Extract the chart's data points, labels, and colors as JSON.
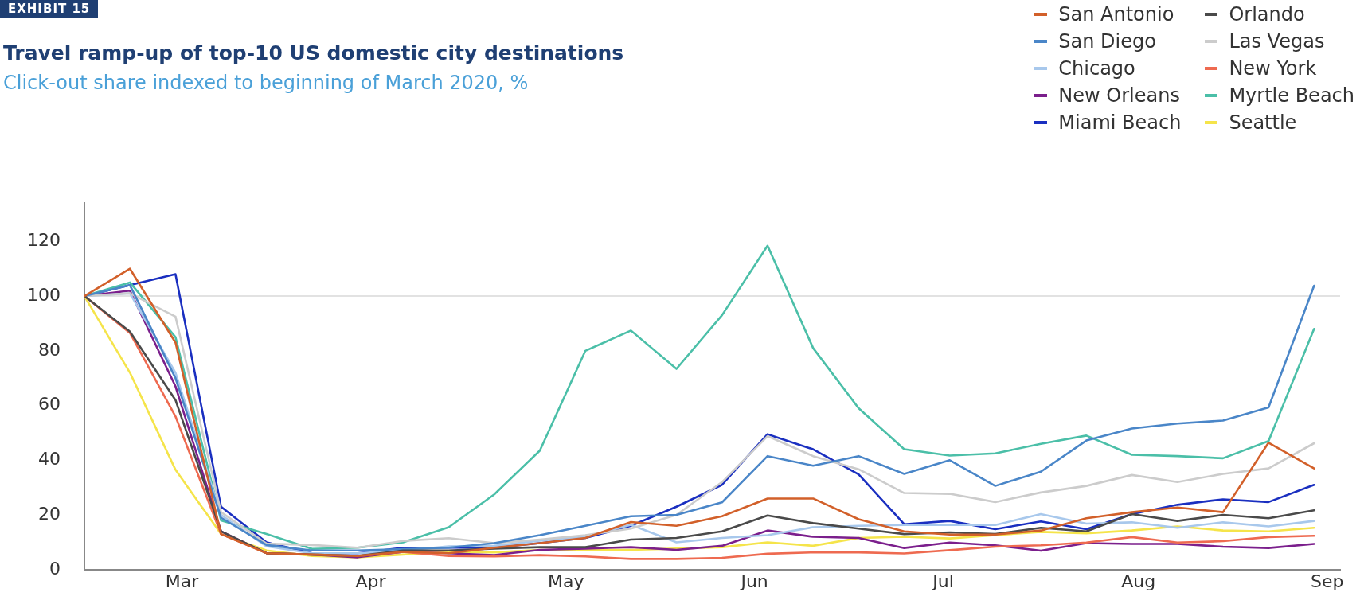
{
  "chart_data": {
    "type": "line",
    "title": "Travel ramp-up of top-10 US domestic city destinations",
    "subtitle": "Click-out share indexed to beginning of March 2020, %",
    "annotations": [
      "EXHIBIT 15"
    ],
    "x": [
      "2020-03-01",
      "2020-03-08",
      "2020-03-15",
      "2020-03-22",
      "2020-03-29",
      "2020-04-05",
      "2020-04-12",
      "2020-04-19",
      "2020-04-26",
      "2020-05-03",
      "2020-05-10",
      "2020-05-17",
      "2020-05-24",
      "2020-05-31",
      "2020-06-07",
      "2020-06-14",
      "2020-06-21",
      "2020-06-28",
      "2020-07-05",
      "2020-07-12",
      "2020-07-19",
      "2020-07-26",
      "2020-08-02",
      "2020-08-09",
      "2020-08-16",
      "2020-08-23",
      "2020-08-30",
      "2020-09-06"
    ],
    "xlim": [
      "2020-03-01",
      "2020-09-10"
    ],
    "xticks": [
      {
        "value": "2020-03-16",
        "label": "Mar"
      },
      {
        "value": "2020-04-14",
        "label": "Apr"
      },
      {
        "value": "2020-05-14",
        "label": "May"
      },
      {
        "value": "2020-06-12",
        "label": "Jun"
      },
      {
        "value": "2020-07-11",
        "label": "Jul"
      },
      {
        "value": "2020-08-10",
        "label": "Aug"
      },
      {
        "value": "2020-09-08",
        "label": "Sep"
      }
    ],
    "ylim": [
      0,
      134
    ],
    "yticks": [
      0,
      20,
      40,
      60,
      80,
      100,
      120
    ],
    "ref_lines": [
      {
        "axis": "y",
        "value": 100,
        "color": "#d9d9d9"
      }
    ],
    "legend": "top right",
    "marker": "none",
    "line_style": "solid",
    "series": [
      {
        "name": "San Antonio",
        "color": "#d2602a",
        "values": [
          100,
          110,
          83,
          13,
          6,
          5.5,
          5,
          6.5,
          6,
          8,
          9.7,
          11.6,
          17.4,
          16,
          19.5,
          26,
          26,
          18.4,
          14,
          12.8,
          12.8,
          14.3,
          18.8,
          21,
          22.7,
          21,
          46.4,
          37
        ]
      },
      {
        "name": "Orlando",
        "color": "#4a4a4a",
        "values": [
          100,
          87,
          62,
          14,
          6,
          5.5,
          5,
          7,
          7,
          7.7,
          8.2,
          8.2,
          11,
          11.6,
          14,
          19.8,
          17,
          15,
          13,
          13.6,
          13,
          15.3,
          14,
          20.3,
          17.8,
          20,
          18.8,
          21.7
        ]
      },
      {
        "name": "San Diego",
        "color": "#4a86c8",
        "values": [
          100,
          104,
          70,
          19,
          9,
          7,
          7,
          7.5,
          8,
          9.7,
          12.6,
          16,
          19.5,
          20,
          24.6,
          41.5,
          38,
          41.5,
          35,
          40,
          30.6,
          35.8,
          47.2,
          51.6,
          53.4,
          54.5,
          59.3,
          103.8
        ]
      },
      {
        "name": "Las Vegas",
        "color": "#cccccc",
        "values": [
          100,
          101,
          92.5,
          21,
          9.5,
          9,
          8,
          10.5,
          11.5,
          9.7,
          11,
          12.6,
          15,
          20,
          32,
          48.8,
          41.5,
          36.7,
          28,
          27.7,
          24.7,
          28.2,
          30.6,
          34.6,
          32,
          35,
          37,
          46.2
        ]
      },
      {
        "name": "Chicago",
        "color": "#a8c8ec",
        "values": [
          100,
          101,
          72,
          20,
          8.5,
          6,
          6,
          7,
          8.5,
          8.7,
          10.6,
          12,
          16.4,
          10,
          11.6,
          12.6,
          15.5,
          16,
          16.3,
          16.3,
          16.3,
          20.3,
          16.8,
          17.3,
          15.3,
          17.3,
          15.8,
          17.8
        ]
      },
      {
        "name": "New York",
        "color": "#ee6a50",
        "values": [
          100,
          86.5,
          56,
          13,
          6,
          5.5,
          5,
          6.5,
          5,
          4.8,
          5.3,
          4.8,
          3.9,
          3.9,
          4.3,
          5.8,
          6.3,
          6.3,
          5.9,
          7.1,
          8.4,
          8.9,
          9.9,
          11.9,
          9.9,
          10.4,
          11.9,
          12.4
        ]
      },
      {
        "name": "New Orleans",
        "color": "#7b1f8c",
        "values": [
          100,
          102,
          67,
          14,
          6,
          5.5,
          4.5,
          6.5,
          6,
          5.3,
          7.2,
          7.7,
          8.2,
          7.2,
          8.7,
          14.3,
          12,
          11.6,
          7.9,
          9.9,
          8.9,
          6.9,
          9.7,
          9.4,
          9.4,
          8.4,
          7.9,
          9.4
        ]
      },
      {
        "name": "Myrtle Beach",
        "color": "#4bbfa8",
        "values": [
          100,
          105,
          85,
          18,
          13,
          7.6,
          8,
          10,
          15.5,
          27.5,
          43.5,
          80,
          87.4,
          73.4,
          93,
          118.4,
          81,
          59,
          44,
          41.7,
          42.5,
          46,
          49,
          42,
          41.5,
          40.7,
          47,
          88
        ]
      },
      {
        "name": "Miami Beach",
        "color": "#1a2fc0",
        "values": [
          100,
          104,
          108,
          23,
          10,
          6,
          6,
          8,
          8,
          8,
          9.7,
          11.6,
          16,
          23,
          31,
          49.5,
          44,
          34.8,
          16.6,
          17.8,
          14.8,
          17.6,
          14.8,
          20.3,
          23.7,
          25.7,
          24.7,
          31
        ]
      },
      {
        "name": "Seattle",
        "color": "#f5e44a",
        "values": [
          100,
          72,
          36.5,
          13,
          7,
          5,
          4.5,
          5.5,
          6.5,
          6.3,
          7.2,
          7.2,
          7.2,
          7.7,
          8.2,
          10,
          8.7,
          11.6,
          12,
          11.4,
          12.6,
          13.8,
          13.3,
          14.3,
          15.8,
          14.3,
          14,
          15.3
        ]
      }
    ]
  }
}
